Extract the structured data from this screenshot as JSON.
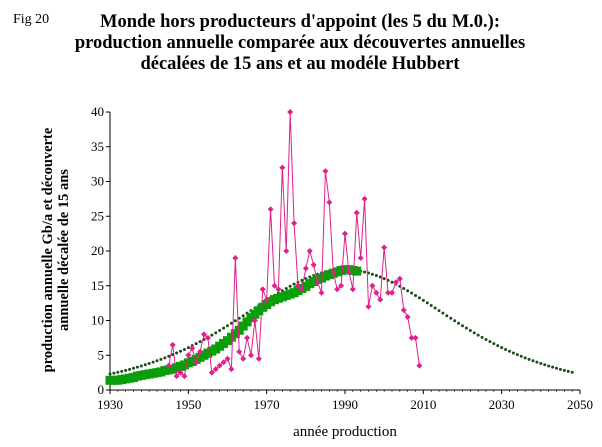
{
  "figure_label": "Fig 20",
  "chart_data": {
    "type": "line",
    "title": "Monde hors producteurs d'appoint (les 5 du M.0.): production annuelle comparée aux découvertes annuelles décalées de 15 ans et au modéle Hubbert",
    "xlabel": "année production",
    "ylabel": "production annuelle  Gb/a et découverte annuelle décalée de 15 ans",
    "xlim": [
      1930,
      2050
    ],
    "ylim": [
      0,
      40
    ],
    "xticks": [
      "1930",
      "1950",
      "1970",
      "1990",
      "2010",
      "2030",
      "2050"
    ],
    "yticks": [
      "0",
      "5",
      "10",
      "15",
      "20",
      "25",
      "30",
      "35",
      "40"
    ],
    "grid": false,
    "legend": "none",
    "colors": {
      "discovery": "#e0208c",
      "production": "#0a9e0a",
      "hubbert": "#1a4d1a"
    },
    "series": [
      {
        "key": "discovery",
        "marker": "diamond",
        "x": [
          1945,
          1946,
          1947,
          1948,
          1949,
          1950,
          1951,
          1952,
          1953,
          1954,
          1955,
          1956,
          1957,
          1958,
          1959,
          1960,
          1961,
          1962,
          1963,
          1964,
          1965,
          1966,
          1967,
          1968,
          1969,
          1970,
          1971,
          1972,
          1973,
          1974,
          1975,
          1976,
          1977,
          1978,
          1979,
          1980,
          1981,
          1982,
          1983,
          1984,
          1985,
          1986,
          1987,
          1988,
          1989,
          1990,
          1991,
          1992,
          1993,
          1994,
          1995,
          1996,
          1997,
          1998,
          1999,
          2000,
          2001,
          2002,
          2003,
          2004,
          2005,
          2006,
          2007,
          2008,
          2009
        ],
        "y": [
          3.5,
          6.5,
          2,
          2.5,
          2,
          5,
          6,
          4,
          5.5,
          8,
          7.5,
          2.5,
          3,
          3.5,
          4,
          4.5,
          3,
          19,
          5.5,
          4.5,
          7.5,
          5,
          10,
          4.5,
          14.5,
          13,
          26,
          15,
          14.5,
          32,
          20,
          41,
          24,
          15,
          14.5,
          17.5,
          20,
          18,
          15.5,
          14,
          31.5,
          27,
          17,
          14.5,
          15,
          22.5,
          17,
          14.5,
          25.5,
          19,
          27.5,
          12,
          15,
          14,
          13,
          20.5,
          14,
          14,
          15.5,
          16,
          11.5,
          10.5,
          7.5,
          7.5,
          3.5
        ]
      },
      {
        "key": "production",
        "marker": "square",
        "x": [
          1930,
          1931,
          1932,
          1933,
          1934,
          1935,
          1936,
          1937,
          1938,
          1939,
          1940,
          1941,
          1942,
          1943,
          1944,
          1945,
          1946,
          1947,
          1948,
          1949,
          1950,
          1951,
          1952,
          1953,
          1954,
          1955,
          1956,
          1957,
          1958,
          1959,
          1960,
          1961,
          1962,
          1963,
          1964,
          1965,
          1966,
          1967,
          1968,
          1969,
          1970,
          1971,
          1972,
          1973,
          1974,
          1975,
          1976,
          1977,
          1978,
          1979,
          1980,
          1981,
          1982,
          1983,
          1984,
          1985,
          1986,
          1987,
          1988,
          1989,
          1990,
          1991,
          1992,
          1993
        ],
        "y": [
          1.4,
          1.4,
          1.4,
          1.5,
          1.6,
          1.7,
          1.8,
          2.0,
          2.1,
          2.2,
          2.3,
          2.4,
          2.5,
          2.6,
          2.8,
          2.9,
          3.0,
          3.2,
          3.4,
          3.6,
          3.9,
          4.1,
          4.4,
          4.7,
          5.0,
          5.3,
          5.6,
          5.9,
          6.3,
          6.7,
          7.1,
          7.6,
          8.1,
          8.6,
          9.2,
          9.8,
          10.4,
          10.9,
          11.4,
          11.9,
          12.3,
          12.7,
          13.0,
          13.2,
          13.4,
          13.6,
          13.8,
          14.0,
          14.3,
          14.6,
          14.9,
          15.3,
          15.6,
          15.9,
          16.1,
          16.4,
          16.6,
          16.8,
          17.0,
          17.2,
          17.3,
          17.3,
          17.2,
          17.1
        ]
      },
      {
        "key": "hubbert",
        "marker": "dot",
        "peak_year": 1990,
        "peak_value": 17.3,
        "x_range": [
          1930,
          2048
        ]
      }
    ]
  }
}
